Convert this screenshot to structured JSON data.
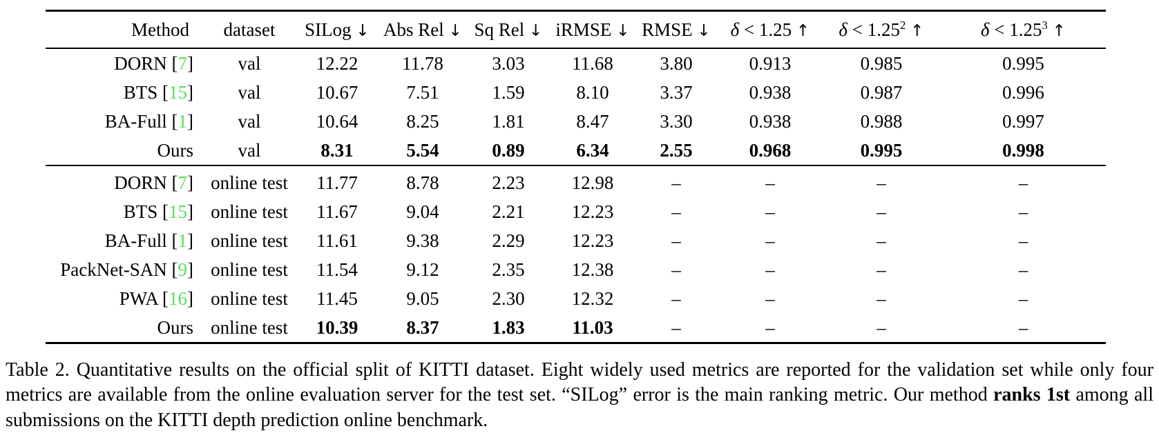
{
  "table": {
    "dash": "–",
    "accent_ref_color": "#57e057",
    "headers": [
      {
        "label": "Method",
        "sup": "",
        "arrow": ""
      },
      {
        "label": "dataset",
        "sup": "",
        "arrow": ""
      },
      {
        "label": "SILog",
        "sup": "",
        "arrow": "↓"
      },
      {
        "label": "Abs Rel",
        "sup": "",
        "arrow": "↓"
      },
      {
        "label": "Sq Rel",
        "sup": "",
        "arrow": "↓"
      },
      {
        "label": "iRMSE",
        "sup": "",
        "arrow": "↓"
      },
      {
        "label": "RMSE",
        "sup": "",
        "arrow": "↓"
      },
      {
        "label": "δ < 1.25",
        "sup": "",
        "arrow": "↑"
      },
      {
        "label": "δ < 1.25",
        "sup": "2",
        "arrow": "↑"
      },
      {
        "label": "δ < 1.25",
        "sup": "3",
        "arrow": "↑"
      }
    ],
    "sections": [
      {
        "rows": [
          {
            "method": "DORN",
            "ref": "7",
            "dataset": "val",
            "bold": false,
            "values": [
              "12.22",
              "11.78",
              "3.03",
              "11.68",
              "3.80",
              "0.913",
              "0.985",
              "0.995"
            ]
          },
          {
            "method": "BTS",
            "ref": "15",
            "dataset": "val",
            "bold": false,
            "values": [
              "10.67",
              "7.51",
              "1.59",
              "8.10",
              "3.37",
              "0.938",
              "0.987",
              "0.996"
            ]
          },
          {
            "method": "BA-Full",
            "ref": "1",
            "dataset": "val",
            "bold": false,
            "values": [
              "10.64",
              "8.25",
              "1.81",
              "8.47",
              "3.30",
              "0.938",
              "0.988",
              "0.997"
            ]
          },
          {
            "method": "Ours",
            "ref": "",
            "dataset": "val",
            "bold": true,
            "values": [
              "8.31",
              "5.54",
              "0.89",
              "6.34",
              "2.55",
              "0.968",
              "0.995",
              "0.998"
            ]
          }
        ]
      },
      {
        "rows": [
          {
            "method": "DORN",
            "ref": "7",
            "dataset": "online test",
            "bold": false,
            "values": [
              "11.77",
              "8.78",
              "2.23",
              "12.98",
              "–",
              "–",
              "–",
              "–"
            ]
          },
          {
            "method": "BTS",
            "ref": "15",
            "dataset": "online test",
            "bold": false,
            "values": [
              "11.67",
              "9.04",
              "2.21",
              "12.23",
              "–",
              "–",
              "–",
              "–"
            ]
          },
          {
            "method": "BA-Full",
            "ref": "1",
            "dataset": "online test",
            "bold": false,
            "values": [
              "11.61",
              "9.38",
              "2.29",
              "12.23",
              "–",
              "–",
              "–",
              "–"
            ]
          },
          {
            "method": "PackNet-SAN",
            "ref": "9",
            "dataset": "online test",
            "bold": false,
            "values": [
              "11.54",
              "9.12",
              "2.35",
              "12.38",
              "–",
              "–",
              "–",
              "–"
            ]
          },
          {
            "method": "PWA",
            "ref": "16",
            "dataset": "online test",
            "bold": false,
            "values": [
              "11.45",
              "9.05",
              "2.30",
              "12.32",
              "–",
              "–",
              "–",
              "–"
            ]
          },
          {
            "method": "Ours",
            "ref": "",
            "dataset": "online test",
            "bold": true,
            "values": [
              "10.39",
              "8.37",
              "1.83",
              "11.03",
              "–",
              "–",
              "–",
              "–"
            ]
          }
        ]
      }
    ]
  },
  "caption": {
    "segments": [
      {
        "text": "Table 2. Quantitative results on the official split of KITTI dataset. Eight widely used metrics are reported for the validation set while only four metrics are available from the online evaluation server for the test set. “SILog” error is the main ranking metric. Our method ",
        "bold": false
      },
      {
        "text": "ranks 1st",
        "bold": true
      },
      {
        "text": " among all submissions on the KITTI depth prediction online benchmark.",
        "bold": false
      }
    ]
  }
}
